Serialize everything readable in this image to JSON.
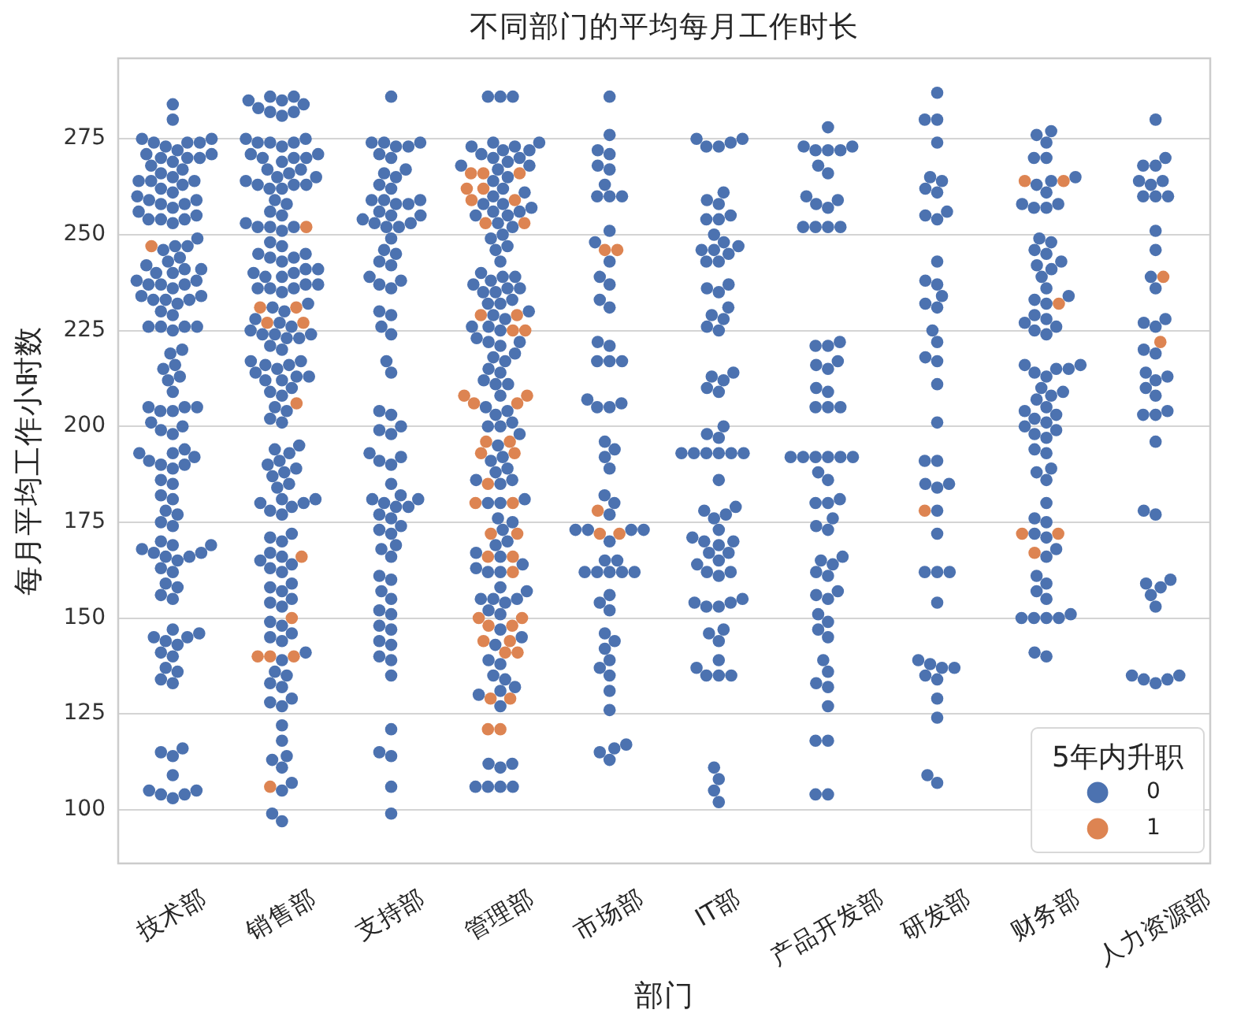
{
  "chart_data": {
    "type": "scatter",
    "title": "不同部门的平均每月工作时长",
    "xlabel": "部门",
    "ylabel": "每月平均工作小时数",
    "legend_title": "5年内升职",
    "legend": "bottom right",
    "grid": "y",
    "marker": "circle",
    "categories": [
      "技术部",
      "销售部",
      "支持部",
      "管理部",
      "市场部",
      "IT部",
      "产品开发部",
      "研发部",
      "财务部",
      "人力资源部"
    ],
    "ylim": [
      86,
      296
    ],
    "yticks": [
      100,
      125,
      150,
      175,
      200,
      225,
      250,
      275
    ],
    "series": [
      {
        "name": "0",
        "color": "#4c72b0",
        "x": [
          "技术部",
          "技术部",
          "技术部",
          "技术部",
          "技术部",
          "技术部",
          "技术部",
          "技术部",
          "技术部",
          "技术部",
          "技术部",
          "技术部",
          "技术部",
          "技术部",
          "技术部",
          "技术部",
          "技术部",
          "技术部",
          "技术部",
          "技术部",
          "技术部",
          "技术部",
          "技术部",
          "技术部",
          "技术部",
          "技术部",
          "技术部",
          "技术部",
          "技术部",
          "技术部",
          "技术部",
          "技术部",
          "技术部",
          "技术部",
          "技术部",
          "技术部",
          "技术部",
          "技术部",
          "技术部",
          "技术部",
          "技术部",
          "技术部",
          "技术部",
          "技术部",
          "技术部",
          "技术部",
          "技术部",
          "技术部",
          "技术部",
          "技术部",
          "技术部",
          "技术部",
          "技术部",
          "技术部",
          "技术部",
          "技术部",
          "技术部",
          "技术部",
          "技术部",
          "技术部",
          "技术部",
          "技术部",
          "技术部",
          "技术部",
          "技术部",
          "技术部",
          "技术部",
          "技术部",
          "技术部",
          "技术部",
          "技术部",
          "技术部",
          "技术部",
          "技术部",
          "技术部",
          "技术部",
          "技术部",
          "技术部",
          "技术部",
          "技术部",
          "技术部",
          "技术部",
          "技术部",
          "技术部",
          "技术部",
          "技术部",
          "技术部",
          "技术部",
          "技术部",
          "技术部",
          "技术部",
          "技术部",
          "技术部",
          "技术部",
          "技术部",
          "技术部",
          "技术部",
          "技术部",
          "技术部",
          "技术部",
          "技术部",
          "技术部",
          "技术部",
          "技术部",
          "技术部",
          "技术部",
          "技术部",
          "技术部",
          "技术部",
          "技术部",
          "技术部",
          "技术部",
          "技术部",
          "技术部",
          "技术部",
          "技术部",
          "技术部",
          "技术部",
          "技术部",
          "技术部",
          "技术部",
          "技术部",
          "技术部",
          "技术部",
          "技术部",
          "技术部",
          "技术部",
          "技术部",
          "技术部",
          "技术部",
          "技术部",
          "技术部",
          "技术部",
          "技术部",
          "技术部",
          "销售部",
          "销售部",
          "销售部",
          "销售部",
          "销售部",
          "销售部",
          "销售部",
          "销售部",
          "销售部",
          "销售部",
          "销售部",
          "销售部",
          "销售部",
          "销售部",
          "销售部",
          "销售部",
          "销售部",
          "销售部",
          "销售部",
          "销售部",
          "销售部",
          "销售部",
          "销售部",
          "销售部",
          "销售部",
          "销售部",
          "销售部",
          "销售部",
          "销售部",
          "销售部",
          "销售部",
          "销售部",
          "销售部",
          "销售部",
          "销售部",
          "销售部",
          "销售部",
          "销售部",
          "销售部",
          "销售部",
          "销售部",
          "销售部",
          "销售部",
          "销售部",
          "销售部",
          "销售部",
          "销售部",
          "销售部",
          "销售部",
          "销售部",
          "销售部",
          "销售部",
          "销售部",
          "销售部",
          "销售部",
          "销售部",
          "销售部",
          "销售部",
          "销售部",
          "销售部",
          "销售部",
          "销售部",
          "销售部",
          "销售部",
          "销售部",
          "销售部",
          "销售部",
          "销售部",
          "销售部",
          "销售部",
          "销售部",
          "销售部",
          "销售部",
          "销售部",
          "销售部",
          "销售部",
          "销售部",
          "销售部",
          "销售部",
          "销售部",
          "销售部",
          "销售部",
          "销售部",
          "销售部",
          "销售部",
          "销售部",
          "销售部",
          "销售部",
          "销售部",
          "销售部",
          "销售部",
          "销售部",
          "销售部",
          "销售部",
          "销售部",
          "销售部",
          "销售部",
          "销售部",
          "销售部",
          "销售部",
          "销售部",
          "销售部",
          "销售部",
          "销售部",
          "销售部",
          "销售部",
          "销售部",
          "销售部",
          "销售部",
          "销售部",
          "销售部",
          "销售部",
          "销售部",
          "销售部",
          "销售部",
          "销售部",
          "销售部",
          "销售部",
          "销售部",
          "销售部",
          "销售部",
          "销售部",
          "销售部",
          "销售部",
          "销售部",
          "销售部",
          "销售部",
          "销售部",
          "销售部",
          "销售部",
          "销售部",
          "销售部",
          "销售部",
          "销售部",
          "销售部",
          "销售部",
          "销售部",
          "销售部",
          "销售部",
          "销售部",
          "销售部",
          "销售部",
          "销售部",
          "销售部",
          "销售部",
          "销售部",
          "支持部",
          "支持部",
          "支持部",
          "支持部",
          "支持部",
          "支持部",
          "支持部",
          "支持部",
          "支持部",
          "支持部",
          "支持部",
          "支持部",
          "支持部",
          "支持部",
          "支持部",
          "支持部",
          "支持部",
          "支持部",
          "支持部",
          "支持部",
          "支持部",
          "支持部",
          "支持部",
          "支持部",
          "支持部",
          "支持部",
          "支持部",
          "支持部",
          "支持部",
          "支持部",
          "支持部",
          "支持部",
          "支持部",
          "支持部",
          "支持部",
          "支持部",
          "支持部",
          "支持部",
          "支持部",
          "支持部",
          "支持部",
          "支持部",
          "支持部",
          "支持部",
          "支持部",
          "支持部",
          "支持部",
          "支持部",
          "支持部",
          "支持部",
          "支持部",
          "支持部",
          "支持部",
          "支持部",
          "支持部",
          "支持部",
          "支持部",
          "支持部",
          "支持部",
          "支持部",
          "支持部",
          "支持部",
          "支持部",
          "支持部",
          "支持部",
          "支持部",
          "支持部",
          "支持部",
          "支持部",
          "支持部",
          "支持部",
          "支持部",
          "支持部",
          "支持部",
          "支持部",
          "支持部",
          "支持部",
          "支持部",
          "支持部",
          "支持部",
          "支持部",
          "支持部",
          "支持部",
          "管理部",
          "管理部",
          "管理部",
          "管理部",
          "管理部",
          "管理部",
          "管理部",
          "管理部",
          "管理部",
          "管理部",
          "管理部",
          "管理部",
          "管理部",
          "管理部",
          "管理部",
          "管理部",
          "管理部",
          "管理部",
          "管理部",
          "管理部",
          "管理部",
          "管理部",
          "管理部",
          "管理部",
          "管理部",
          "管理部",
          "管理部",
          "管理部",
          "管理部",
          "管理部",
          "管理部",
          "管理部",
          "管理部",
          "管理部",
          "管理部",
          "管理部",
          "管理部",
          "管理部",
          "管理部",
          "管理部",
          "管理部",
          "管理部",
          "管理部",
          "管理部",
          "管理部",
          "管理部",
          "管理部",
          "管理部",
          "管理部",
          "管理部",
          "管理部",
          "管理部",
          "管理部",
          "管理部",
          "管理部",
          "管理部",
          "管理部",
          "管理部",
          "管理部",
          "管理部",
          "管理部",
          "管理部",
          "管理部",
          "管理部",
          "管理部",
          "管理部",
          "管理部",
          "管理部",
          "管理部",
          "管理部",
          "管理部",
          "管理部",
          "管理部",
          "管理部",
          "管理部",
          "管理部",
          "管理部",
          "管理部",
          "管理部",
          "管理部",
          "管理部",
          "管理部",
          "管理部",
          "管理部",
          "管理部",
          "管理部",
          "管理部",
          "管理部",
          "管理部",
          "管理部",
          "管理部",
          "管理部",
          "管理部",
          "管理部",
          "管理部",
          "管理部",
          "管理部",
          "管理部",
          "管理部",
          "管理部",
          "管理部",
          "管理部",
          "管理部",
          "管理部",
          "管理部",
          "管理部",
          "管理部",
          "管理部",
          "管理部",
          "管理部",
          "管理部",
          "管理部",
          "管理部",
          "管理部",
          "管理部",
          "管理部",
          "管理部",
          "管理部",
          "管理部",
          "管理部",
          "管理部",
          "市场部",
          "市场部",
          "市场部",
          "市场部",
          "市场部",
          "市场部",
          "市场部",
          "市场部",
          "市场部",
          "市场部",
          "市场部",
          "市场部",
          "市场部",
          "市场部",
          "市场部",
          "市场部",
          "市场部",
          "市场部",
          "市场部",
          "市场部",
          "市场部",
          "市场部",
          "市场部",
          "市场部",
          "市场部",
          "市场部",
          "市场部",
          "市场部",
          "市场部",
          "市场部",
          "市场部",
          "市场部",
          "市场部",
          "市场部",
          "市场部",
          "市场部",
          "市场部",
          "市场部",
          "市场部",
          "市场部",
          "市场部",
          "市场部",
          "市场部",
          "市场部",
          "市场部",
          "市场部",
          "市场部",
          "市场部",
          "市场部",
          "市场部",
          "市场部",
          "市场部",
          "市场部",
          "市场部",
          "市场部",
          "市场部",
          "市场部",
          "市场部",
          "市场部",
          "市场部",
          "IT部",
          "IT部",
          "IT部",
          "IT部",
          "IT部",
          "IT部",
          "IT部",
          "IT部",
          "IT部",
          "IT部",
          "IT部",
          "IT部",
          "IT部",
          "IT部",
          "IT部",
          "IT部",
          "IT部",
          "IT部",
          "IT部",
          "IT部",
          "IT部",
          "IT部",
          "IT部",
          "IT部",
          "IT部",
          "IT部",
          "IT部",
          "IT部",
          "IT部",
          "IT部",
          "IT部",
          "IT部",
          "IT部",
          "IT部",
          "IT部",
          "IT部",
          "IT部",
          "IT部",
          "IT部",
          "IT部",
          "IT部",
          "IT部",
          "IT部",
          "IT部",
          "IT部",
          "IT部",
          "IT部",
          "IT部",
          "IT部",
          "IT部",
          "IT部",
          "IT部",
          "IT部",
          "IT部",
          "IT部",
          "IT部",
          "IT部",
          "IT部",
          "IT部",
          "IT部",
          "IT部",
          "IT部",
          "IT部",
          "IT部",
          "IT部",
          "IT部",
          "IT部",
          "IT部",
          "IT部",
          "IT部",
          "IT部",
          "IT部",
          "IT部",
          "IT部",
          "IT部",
          "产品开发部",
          "产品开发部",
          "产品开发部",
          "产品开发部",
          "产品开发部",
          "产品开发部",
          "产品开发部",
          "产品开发部",
          "产品开发部",
          "产品开发部",
          "产品开发部",
          "产品开发部",
          "产品开发部",
          "产品开发部",
          "产品开发部",
          "产品开发部",
          "产品开发部",
          "产品开发部",
          "产品开发部",
          "产品开发部",
          "产品开发部",
          "产品开发部",
          "产品开发部",
          "产品开发部",
          "产品开发部",
          "产品开发部",
          "产品开发部",
          "产品开发部",
          "产品开发部",
          "产品开发部",
          "产品开发部",
          "产品开发部",
          "产品开发部",
          "产品开发部",
          "产品开发部",
          "产品开发部",
          "产品开发部",
          "产品开发部",
          "产品开发部",
          "产品开发部",
          "产品开发部",
          "产品开发部",
          "产品开发部",
          "产品开发部",
          "产品开发部",
          "产品开发部",
          "产品开发部",
          "产品开发部",
          "产品开发部",
          "产品开发部",
          "产品开发部",
          "产品开发部",
          "产品开发部",
          "产品开发部",
          "产品开发部",
          "产品开发部",
          "产品开发部",
          "产品开发部",
          "产品开发部",
          "产品开发部",
          "产品开发部",
          "产品开发部",
          "研发部",
          "研发部",
          "研发部",
          "研发部",
          "研发部",
          "研发部",
          "研发部",
          "研发部",
          "研发部",
          "研发部",
          "研发部",
          "研发部",
          "研发部",
          "研发部",
          "研发部",
          "研发部",
          "研发部",
          "研发部",
          "研发部",
          "研发部",
          "研发部",
          "研发部",
          "研发部",
          "研发部",
          "研发部",
          "研发部",
          "研发部",
          "研发部",
          "研发部",
          "研发部",
          "研发部",
          "研发部",
          "研发部",
          "研发部",
          "研发部",
          "研发部",
          "研发部",
          "研发部",
          "研发部",
          "研发部",
          "研发部",
          "研发部",
          "研发部",
          "研发部",
          "财务部",
          "财务部",
          "财务部",
          "财务部",
          "财务部",
          "财务部",
          "财务部",
          "财务部",
          "财务部",
          "财务部",
          "财务部",
          "财务部",
          "财务部",
          "财务部",
          "财务部",
          "财务部",
          "财务部",
          "财务部",
          "财务部",
          "财务部",
          "财务部",
          "财务部",
          "财务部",
          "财务部",
          "财务部",
          "财务部",
          "财务部",
          "财务部",
          "财务部",
          "财务部",
          "财务部",
          "财务部",
          "财务部",
          "财务部",
          "财务部",
          "财务部",
          "财务部",
          "财务部",
          "财务部",
          "财务部",
          "财务部",
          "财务部",
          "财务部",
          "财务部",
          "财务部",
          "财务部",
          "财务部",
          "财务部",
          "财务部",
          "财务部",
          "财务部",
          "财务部",
          "财务部",
          "财务部",
          "财务部",
          "财务部",
          "财务部",
          "财务部",
          "财务部",
          "财务部",
          "财务部",
          "财务部",
          "财务部",
          "财务部",
          "财务部",
          "财务部",
          "财务部",
          "财务部",
          "财务部",
          "财务部",
          "财务部",
          "财务部",
          "财务部",
          "人力资源部",
          "人力资源部",
          "人力资源部",
          "人力资源部",
          "人力资源部",
          "人力资源部",
          "人力资源部",
          "人力资源部",
          "人力资源部",
          "人力资源部",
          "人力资源部",
          "人力资源部",
          "人力资源部",
          "人力资源部",
          "人力资源部",
          "人力资源部",
          "人力资源部",
          "人力资源部",
          "人力资源部",
          "人力资源部",
          "人力资源部",
          "人力资源部",
          "人力资源部",
          "人力资源部",
          "人力资源部",
          "人力资源部",
          "人力资源部",
          "人力资源部",
          "人力资源部",
          "人力资源部",
          "人力资源部",
          "人力资源部",
          "人力资源部",
          "人力资源部",
          "人力资源部",
          "人力资源部",
          "人力资源部",
          "人力资源部",
          "人力资源部",
          "人力资源部"
        ],
        "values": [
          284,
          280,
          275,
          274,
          274,
          273,
          275,
          274,
          271,
          270,
          270,
          271,
          269,
          270,
          272,
          267,
          266,
          268,
          264,
          264,
          263,
          265,
          264,
          261,
          262,
          259,
          258,
          259,
          260,
          258,
          256,
          257,
          254,
          254,
          253,
          254,
          255,
          249,
          247,
          247,
          246,
          244,
          243,
          241,
          240,
          241,
          240,
          242,
          237,
          238,
          237,
          236,
          237,
          238,
          234,
          233,
          233,
          232,
          234,
          233,
          230,
          229,
          226,
          226,
          225,
          226,
          226,
          220,
          219,
          216,
          215,
          213,
          212,
          209,
          205,
          205,
          204,
          204,
          205,
          201,
          200,
          199,
          198,
          194,
          193,
          193,
          192,
          191,
          190,
          190,
          189,
          186,
          185,
          182,
          181,
          178,
          177,
          175,
          174,
          170,
          169,
          168,
          167,
          166,
          165,
          166,
          169,
          167,
          163,
          162,
          159,
          158,
          155,
          156,
          147,
          146,
          145,
          144,
          143,
          145,
          141,
          140,
          137,
          136,
          134,
          133,
          116,
          115,
          114,
          109,
          105,
          104,
          104,
          103,
          105,
          286,
          286,
          285,
          285,
          284,
          283,
          282,
          282,
          281,
          275,
          274,
          274,
          273,
          275,
          274,
          271,
          270,
          270,
          269,
          270,
          271,
          267,
          266,
          267,
          265,
          265,
          263,
          263,
          262,
          264,
          262,
          263,
          259,
          258,
          256,
          255,
          252,
          252,
          251,
          252,
          253,
          248,
          247,
          245,
          244,
          245,
          244,
          243,
          241,
          240,
          239,
          240,
          241,
          239,
          237,
          236,
          236,
          237,
          235,
          236,
          232,
          231,
          230,
          228,
          227,
          226,
          224,
          224,
          223,
          225,
          223,
          224,
          221,
          220,
          217,
          216,
          216,
          217,
          215,
          213,
          212,
          213,
          214,
          212,
          210,
          209,
          208,
          205,
          204,
          202,
          201,
          195,
          194,
          193,
          191,
          190,
          189,
          188,
          187,
          185,
          184,
          181,
          180,
          179,
          181,
          180,
          178,
          177,
          172,
          171,
          170,
          167,
          166,
          165,
          163,
          162,
          164,
          159,
          158,
          157,
          155,
          154,
          153,
          149,
          148,
          146,
          145,
          144,
          141,
          139,
          136,
          135,
          133,
          132,
          129,
          128,
          127,
          122,
          118,
          114,
          113,
          111,
          107,
          105,
          99,
          97,
          286,
          274,
          274,
          273,
          274,
          273,
          270,
          271,
          267,
          266,
          265,
          263,
          262,
          259,
          259,
          258,
          258,
          259,
          256,
          255,
          255,
          254,
          253,
          252,
          252,
          253,
          249,
          246,
          245,
          243,
          242,
          239,
          238,
          237,
          236,
          230,
          229,
          226,
          224,
          217,
          214,
          204,
          203,
          200,
          199,
          198,
          193,
          192,
          190,
          191,
          185,
          182,
          181,
          180,
          179,
          181,
          179,
          177,
          176,
          174,
          173,
          172,
          169,
          168,
          166,
          161,
          160,
          157,
          155,
          152,
          151,
          148,
          147,
          144,
          143,
          140,
          139,
          135,
          121,
          115,
          114,
          106,
          99,
          286,
          286,
          286,
          274,
          273,
          272,
          274,
          273,
          272,
          270,
          269,
          270,
          271,
          268,
          267,
          268,
          265,
          264,
          262,
          261,
          260,
          258,
          257,
          258,
          256,
          255,
          256,
          255,
          253,
          252,
          250,
          249,
          247,
          246,
          243,
          240,
          239,
          238,
          239,
          236,
          235,
          236,
          237,
          235,
          233,
          232,
          232,
          230,
          229,
          228,
          226,
          225,
          226,
          222,
          221,
          222,
          223,
          219,
          218,
          217,
          215,
          214,
          212,
          211,
          211,
          208,
          205,
          204,
          203,
          201,
          200,
          200,
          198,
          195,
          192,
          191,
          189,
          188,
          186,
          185,
          186,
          180,
          180,
          181,
          176,
          175,
          173,
          170,
          169,
          167,
          166,
          164,
          163,
          162,
          162,
          158,
          157,
          155,
          155,
          154,
          155,
          152,
          151,
          147,
          145,
          143,
          139,
          138,
          135,
          134,
          132,
          131,
          130,
          127,
          112,
          111,
          112,
          106,
          106,
          106,
          106,
          286,
          276,
          272,
          271,
          268,
          267,
          263,
          260,
          260,
          260,
          251,
          248,
          243,
          239,
          237,
          233,
          231,
          222,
          221,
          217,
          217,
          217,
          207,
          206,
          205,
          205,
          196,
          194,
          192,
          189,
          182,
          180,
          177,
          173,
          173,
          173,
          173,
          170,
          165,
          165,
          162,
          162,
          162,
          162,
          162,
          156,
          154,
          152,
          146,
          144,
          142,
          139,
          137,
          135,
          131,
          126,
          117,
          116,
          115,
          113,
          275,
          275,
          274,
          273,
          273,
          261,
          259,
          258,
          255,
          254,
          254,
          250,
          248,
          247,
          246,
          246,
          245,
          243,
          243,
          237,
          236,
          235,
          231,
          229,
          228,
          226,
          225,
          214,
          213,
          212,
          210,
          209,
          200,
          198,
          197,
          193,
          193,
          193,
          193,
          193,
          193,
          186,
          179,
          178,
          177,
          176,
          173,
          171,
          170,
          170,
          169,
          167,
          167,
          165,
          164,
          162,
          162,
          161,
          155,
          154,
          154,
          153,
          153,
          147,
          146,
          144,
          139,
          137,
          135,
          135,
          135,
          111,
          108,
          105,
          102,
          278,
          273,
          272,
          272,
          272,
          273,
          268,
          266,
          260,
          259,
          258,
          257,
          252,
          252,
          252,
          252,
          222,
          221,
          221,
          217,
          216,
          215,
          210,
          209,
          205,
          205,
          205,
          192,
          192,
          192,
          192,
          192,
          192,
          188,
          186,
          181,
          180,
          180,
          176,
          174,
          173,
          166,
          165,
          164,
          162,
          161,
          157,
          156,
          155,
          151,
          149,
          147,
          145,
          139,
          136,
          133,
          132,
          127,
          118,
          118,
          104,
          104,
          287,
          280,
          280,
          274,
          265,
          264,
          262,
          261,
          256,
          255,
          254,
          243,
          238,
          237,
          234,
          232,
          231,
          225,
          222,
          218,
          217,
          211,
          201,
          191,
          191,
          185,
          184,
          185,
          178,
          172,
          162,
          162,
          162,
          154,
          139,
          138,
          137,
          137,
          135,
          134,
          129,
          124,
          109,
          107,
          277,
          276,
          274,
          270,
          270,
          265,
          264,
          263,
          261,
          258,
          257,
          257,
          258,
          249,
          248,
          246,
          245,
          243,
          242,
          241,
          239,
          236,
          234,
          233,
          232,
          229,
          228,
          227,
          226,
          225,
          224,
          216,
          216,
          215,
          215,
          214,
          213,
          210,
          209,
          208,
          207,
          205,
          204,
          203,
          202,
          201,
          200,
          199,
          198,
          197,
          194,
          193,
          189,
          188,
          186,
          180,
          176,
          175,
          172,
          171,
          168,
          166,
          161,
          159,
          157,
          155,
          151,
          150,
          150,
          150,
          150,
          141,
          140,
          280,
          270,
          268,
          268,
          264,
          263,
          264,
          260,
          260,
          260,
          251,
          246,
          239,
          236,
          228,
          227,
          226,
          220,
          219,
          214,
          213,
          212,
          210,
          208,
          204,
          203,
          203,
          196,
          178,
          177,
          160,
          159,
          158,
          156,
          153,
          135,
          135,
          134,
          134,
          133
        ]
      },
      {
        "name": "1",
        "color": "#dd8452",
        "x": [
          "技术部",
          "销售部",
          "销售部",
          "销售部",
          "销售部",
          "销售部",
          "销售部",
          "销售部",
          "销售部",
          "销售部",
          "销售部",
          "销售部",
          "销售部",
          "管理部",
          "管理部",
          "管理部",
          "管理部",
          "管理部",
          "管理部",
          "管理部",
          "管理部",
          "管理部",
          "管理部",
          "管理部",
          "管理部",
          "管理部",
          "管理部",
          "管理部",
          "管理部",
          "管理部",
          "管理部",
          "管理部",
          "管理部",
          "管理部",
          "管理部",
          "管理部",
          "管理部",
          "管理部",
          "管理部",
          "管理部",
          "管理部",
          "管理部",
          "管理部",
          "管理部",
          "管理部",
          "管理部",
          "管理部",
          "管理部",
          "管理部",
          "管理部",
          "管理部",
          "管理部",
          "管理部",
          "管理部",
          "市场部",
          "市场部",
          "市场部",
          "市场部",
          "市场部",
          "研发部",
          "财务部",
          "财务部",
          "财务部",
          "财务部",
          "财务部",
          "财务部",
          "人力资源部",
          "人力资源部"
        ],
        "values": [
          247,
          252,
          231,
          231,
          227,
          227,
          206,
          166,
          150,
          140,
          140,
          140,
          106,
          266,
          266,
          266,
          262,
          262,
          259,
          259,
          253,
          253,
          229,
          229,
          225,
          225,
          208,
          208,
          206,
          206,
          196,
          196,
          193,
          193,
          185,
          180,
          180,
          172,
          172,
          166,
          166,
          162,
          150,
          150,
          148,
          148,
          144,
          144,
          141,
          141,
          129,
          129,
          121,
          121,
          246,
          246,
          178,
          172,
          172,
          178,
          264,
          264,
          232,
          172,
          172,
          167,
          239,
          222
        ]
      }
    ]
  }
}
